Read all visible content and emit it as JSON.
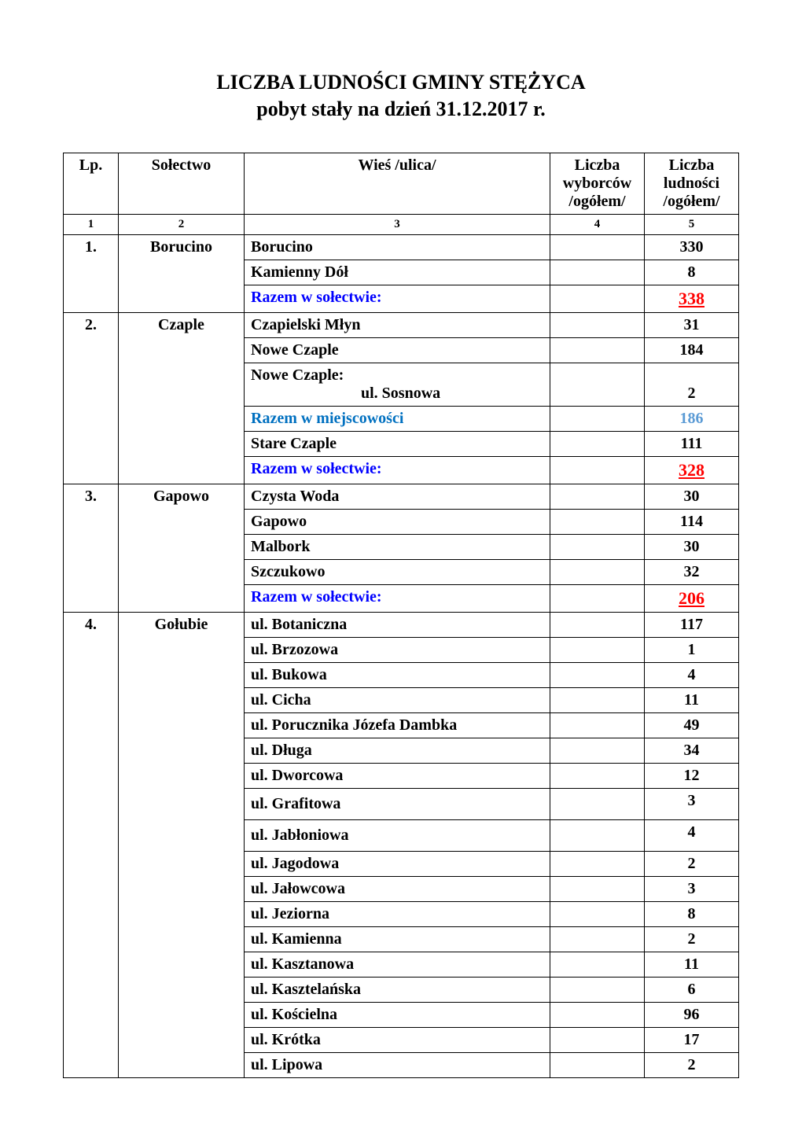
{
  "title": "LICZBA   LUDNOŚCI  GMINY  STĘŻYCA",
  "subtitle": "pobyt stały na dzień  31.12.2017 r.",
  "headers": {
    "lp": "Lp.",
    "solectwo": "Sołectwo",
    "wies": "Wieś /ulica/",
    "wyborcow": "Liczba wyborców /ogółem/",
    "ludnosci": "Liczba ludności /ogółem/"
  },
  "headerNums": {
    "c1": "1",
    "c2": "2",
    "c3": "3",
    "c4": "4",
    "c5": "5"
  },
  "labels": {
    "razemSolectwo": "Razem w sołectwie:",
    "razemMiejsc": "Razem w miejscowości"
  },
  "groups": [
    {
      "lp": "1.",
      "solectwo": "Borucino",
      "rows": [
        {
          "wies": "Borucino",
          "val": "330"
        },
        {
          "wies": "Kamienny Dół",
          "val": "8"
        }
      ],
      "razemSolectwo": "338"
    },
    {
      "lp": "2.",
      "solectwo": "Czaple",
      "rows": [
        {
          "wies": "Czapielski Młyn",
          "val": "31"
        },
        {
          "wies": "Nowe Czaple",
          "val": "184"
        },
        {
          "wies_header": "Nowe Czaple:",
          "wies_indent": "ul. Sosnowa",
          "val": "2"
        },
        {
          "razemMiejsc": true,
          "val": "186"
        },
        {
          "wies": "Stare Czaple",
          "val": "111"
        }
      ],
      "razemSolectwo": "328"
    },
    {
      "lp": "3.",
      "solectwo": "Gapowo",
      "rows": [
        {
          "wies": "Czysta Woda",
          "val": "30"
        },
        {
          "wies": "Gapowo",
          "val": "114"
        },
        {
          "wies": "Malbork",
          "val": "30"
        },
        {
          "wies": "Szczukowo",
          "val": "32"
        }
      ],
      "razemSolectwo": "206"
    },
    {
      "lp": "4.",
      "solectwo": "Gołubie",
      "rows": [
        {
          "wies": "ul. Botaniczna",
          "val": "117"
        },
        {
          "wies": "ul. Brzozowa",
          "val": "1"
        },
        {
          "wies": "ul. Bukowa",
          "val": "4"
        },
        {
          "wies": "ul. Cicha",
          "val": "11"
        },
        {
          "wies": "ul. Porucznika Józefa Dambka",
          "val": "49"
        },
        {
          "wies": "ul. Długa",
          "val": "34"
        },
        {
          "wies": "ul. Dworcowa",
          "val": "12"
        },
        {
          "wies": "ul. Grafitowa",
          "val": "3",
          "tall": true
        },
        {
          "wies": "ul. Jabłoniowa",
          "val": "4",
          "tall": true
        },
        {
          "wies": "ul. Jagodowa",
          "val": "2"
        },
        {
          "wies": "ul. Jałowcowa",
          "val": "3"
        },
        {
          "wies": "ul. Jeziorna",
          "val": "8"
        },
        {
          "wies": "ul. Kamienna",
          "val": "2"
        },
        {
          "wies": "ul. Kasztanowa",
          "val": "11"
        },
        {
          "wies": "ul. Kasztelańska",
          "val": "6"
        },
        {
          "wies": "ul. Kościelna",
          "val": "96"
        },
        {
          "wies": "ul. Krótka",
          "val": "17"
        },
        {
          "wies": "ul. Lipowa",
          "val": "2"
        }
      ]
    }
  ],
  "styling": {
    "page_bg": "#ffffff",
    "border_color": "#000000",
    "razem_solectwo_color": "#0000ff",
    "razem_solectwo_val_color": "#ff0000",
    "razem_miejsc_color": "#0070c0",
    "razem_miejsc_val_color": "#5b9bd5",
    "font_family": "Times New Roman",
    "title_fontsize": 26,
    "header_fontsize": 20,
    "body_fontsize": 20,
    "headernum_fontsize": 15
  }
}
